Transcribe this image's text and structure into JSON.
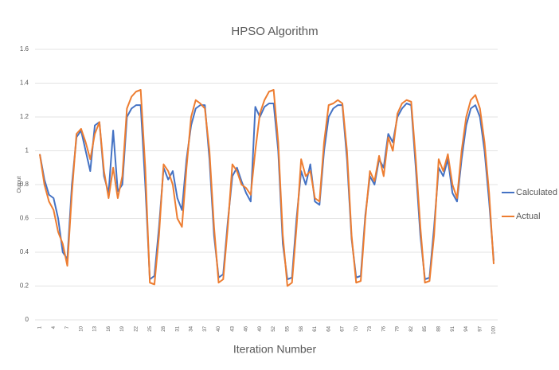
{
  "chart_data": {
    "type": "line",
    "title": "HPSO Algorithm",
    "x_label": "Iteration Number",
    "y_label": "Output",
    "x": [
      1,
      2,
      3,
      4,
      5,
      6,
      7,
      8,
      9,
      10,
      11,
      12,
      13,
      14,
      15,
      16,
      17,
      18,
      19,
      20,
      21,
      22,
      23,
      24,
      25,
      26,
      27,
      28,
      29,
      30,
      31,
      32,
      33,
      34,
      35,
      36,
      37,
      38,
      39,
      40,
      41,
      42,
      43,
      44,
      45,
      46,
      47,
      48,
      49,
      50,
      51,
      52,
      53,
      54,
      55,
      56,
      57,
      58,
      59,
      60,
      61,
      62,
      63,
      64,
      65,
      66,
      67,
      68,
      69,
      70,
      71,
      72,
      73,
      74,
      75,
      76,
      77,
      78,
      79,
      80,
      81,
      82,
      83,
      84,
      85,
      86,
      87,
      88,
      89,
      90,
      91,
      92,
      93,
      94,
      95,
      96,
      97,
      98,
      99,
      100
    ],
    "series": [
      {
        "name": "Calculated",
        "color": "#4472c4",
        "values": [
          0.98,
          0.83,
          0.74,
          0.72,
          0.6,
          0.4,
          0.36,
          0.8,
          1.08,
          1.12,
          1.0,
          0.88,
          1.15,
          1.17,
          0.85,
          0.75,
          1.12,
          0.76,
          0.8,
          1.2,
          1.25,
          1.27,
          1.27,
          0.8,
          0.24,
          0.26,
          0.55,
          0.9,
          0.83,
          0.88,
          0.72,
          0.65,
          0.95,
          1.15,
          1.25,
          1.27,
          1.27,
          0.95,
          0.5,
          0.25,
          0.27,
          0.58,
          0.85,
          0.9,
          0.82,
          0.75,
          0.7,
          1.26,
          1.2,
          1.26,
          1.28,
          1.28,
          1.0,
          0.45,
          0.24,
          0.25,
          0.6,
          0.88,
          0.8,
          0.92,
          0.7,
          0.68,
          1.0,
          1.2,
          1.25,
          1.27,
          1.27,
          0.95,
          0.48,
          0.25,
          0.26,
          0.62,
          0.85,
          0.8,
          0.95,
          0.9,
          1.1,
          1.05,
          1.2,
          1.25,
          1.28,
          1.27,
          0.9,
          0.5,
          0.24,
          0.25,
          0.55,
          0.9,
          0.85,
          0.95,
          0.75,
          0.7,
          0.95,
          1.15,
          1.25,
          1.27,
          1.2,
          1.0,
          0.7,
          0.35
        ]
      },
      {
        "name": "Actual",
        "color": "#ed7d31",
        "values": [
          0.98,
          0.8,
          0.7,
          0.65,
          0.52,
          0.45,
          0.32,
          0.75,
          1.1,
          1.13,
          1.05,
          0.95,
          1.1,
          1.17,
          0.88,
          0.72,
          0.9,
          0.72,
          0.85,
          1.25,
          1.32,
          1.35,
          1.36,
          0.9,
          0.22,
          0.21,
          0.5,
          0.92,
          0.88,
          0.8,
          0.6,
          0.55,
          0.9,
          1.2,
          1.3,
          1.28,
          1.25,
          1.0,
          0.55,
          0.22,
          0.24,
          0.55,
          0.92,
          0.88,
          0.8,
          0.78,
          0.74,
          1.0,
          1.22,
          1.3,
          1.35,
          1.36,
          1.05,
          0.5,
          0.2,
          0.22,
          0.55,
          0.95,
          0.85,
          0.88,
          0.72,
          0.7,
          1.05,
          1.27,
          1.28,
          1.3,
          1.28,
          1.0,
          0.5,
          0.22,
          0.23,
          0.6,
          0.88,
          0.82,
          0.97,
          0.85,
          1.08,
          1.0,
          1.22,
          1.28,
          1.3,
          1.29,
          0.95,
          0.55,
          0.22,
          0.23,
          0.5,
          0.95,
          0.88,
          0.98,
          0.8,
          0.72,
          1.0,
          1.2,
          1.3,
          1.33,
          1.25,
          1.05,
          0.75,
          0.33
        ]
      }
    ],
    "xlim": [
      1,
      100
    ],
    "xticks": [
      1,
      4,
      7,
      10,
      13,
      16,
      19,
      22,
      25,
      28,
      31,
      34,
      37,
      40,
      43,
      46,
      49,
      52,
      55,
      58,
      61,
      64,
      67,
      70,
      73,
      76,
      79,
      82,
      85,
      88,
      91,
      94,
      97,
      100
    ],
    "ylim": [
      0,
      1.6
    ],
    "yticks": [
      0,
      0.2,
      0.4,
      0.6,
      0.8,
      1,
      1.2,
      1.4,
      1.6
    ],
    "grid": true,
    "legend": "right"
  }
}
